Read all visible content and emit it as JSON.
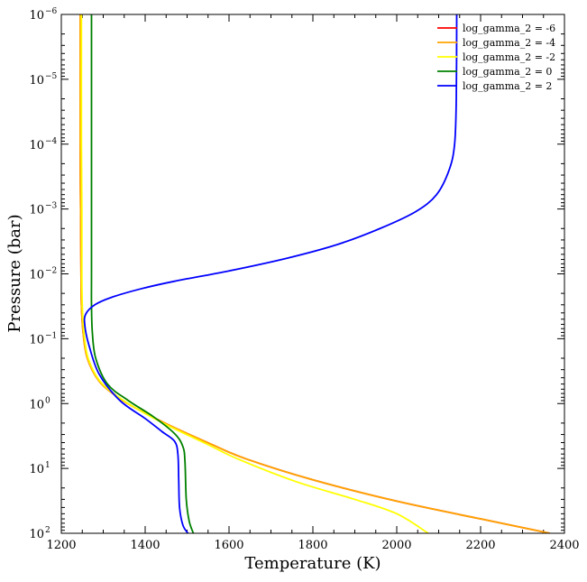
{
  "chart_data": {
    "type": "line",
    "title": "",
    "xlabel": "Temperature (K)",
    "ylabel": "Pressure (bar)",
    "xlim": [
      1200,
      2400
    ],
    "ylim": [
      100,
      1e-06
    ],
    "yscale": "log",
    "y_inverted": true,
    "grid": false,
    "legend_position": "top-right",
    "x_ticks": [
      1200,
      1400,
      1600,
      1800,
      2000,
      2200,
      2400
    ],
    "x_tick_labels": [
      "1200",
      "1400",
      "1600",
      "1800",
      "2000",
      "2200",
      "2400"
    ],
    "y_ticks": [
      {
        "value": 1e-06,
        "base": "10",
        "exp": "−6"
      },
      {
        "value": 1e-05,
        "base": "10",
        "exp": "−5"
      },
      {
        "value": 0.0001,
        "base": "10",
        "exp": "−4"
      },
      {
        "value": 0.001,
        "base": "10",
        "exp": "−3"
      },
      {
        "value": 0.01,
        "base": "10",
        "exp": "−2"
      },
      {
        "value": 0.1,
        "base": "10",
        "exp": "−1"
      },
      {
        "value": 1,
        "base": "10",
        "exp": "0"
      },
      {
        "value": 10,
        "base": "10",
        "exp": "1"
      },
      {
        "value": 100,
        "base": "10",
        "exp": "2"
      }
    ],
    "series": [
      {
        "name": "log_gamma_2 = -6",
        "color": "#ff0000",
        "points": [
          [
            1245,
            1e-06
          ],
          [
            1245,
            0.0001
          ],
          [
            1246,
            0.001
          ],
          [
            1247,
            0.01
          ],
          [
            1248,
            0.03
          ],
          [
            1252,
            0.08
          ],
          [
            1262,
            0.2
          ],
          [
            1290,
            0.45
          ],
          [
            1335,
            0.8
          ],
          [
            1380,
            1.2
          ],
          [
            1460,
            2.2
          ],
          [
            1560,
            4.3
          ],
          [
            1640,
            7.1
          ],
          [
            1800,
            15
          ],
          [
            2000,
            32
          ],
          [
            2200,
            60
          ],
          [
            2365,
            100
          ]
        ]
      },
      {
        "name": "log_gamma_2 = -4",
        "color": "#ffa500",
        "points": [
          [
            1245,
            1e-06
          ],
          [
            1245,
            0.0001
          ],
          [
            1246,
            0.001
          ],
          [
            1247,
            0.01
          ],
          [
            1248,
            0.03
          ],
          [
            1252,
            0.08
          ],
          [
            1262,
            0.2
          ],
          [
            1290,
            0.45
          ],
          [
            1335,
            0.8
          ],
          [
            1380,
            1.2
          ],
          [
            1460,
            2.2
          ],
          [
            1560,
            4.3
          ],
          [
            1640,
            7.1
          ],
          [
            1800,
            15
          ],
          [
            2000,
            32
          ],
          [
            2200,
            60
          ],
          [
            2365,
            100
          ]
        ]
      },
      {
        "name": "log_gamma_2 = -2",
        "color": "#ffff00",
        "points": [
          [
            1248,
            1e-06
          ],
          [
            1248,
            0.0001
          ],
          [
            1249,
            0.001
          ],
          [
            1249,
            0.01
          ],
          [
            1250,
            0.03
          ],
          [
            1254,
            0.08
          ],
          [
            1264,
            0.2
          ],
          [
            1292,
            0.45
          ],
          [
            1337,
            0.8
          ],
          [
            1380,
            1.2
          ],
          [
            1455,
            2.2
          ],
          [
            1550,
            4.3
          ],
          [
            1620,
            7.1
          ],
          [
            1760,
            16
          ],
          [
            1900,
            30
          ],
          [
            2000,
            50
          ],
          [
            2075,
            100
          ]
        ]
      },
      {
        "name": "log_gamma_2 = 0",
        "color": "#008000",
        "points": [
          [
            1272,
            1e-06
          ],
          [
            1272,
            0.0001
          ],
          [
            1272,
            0.001
          ],
          [
            1272,
            0.01
          ],
          [
            1272,
            0.03
          ],
          [
            1274,
            0.08
          ],
          [
            1282,
            0.2
          ],
          [
            1310,
            0.5
          ],
          [
            1360,
            0.9
          ],
          [
            1420,
            1.6
          ],
          [
            1470,
            2.9
          ],
          [
            1490,
            4.6
          ],
          [
            1495,
            8
          ],
          [
            1498,
            30
          ],
          [
            1505,
            65
          ],
          [
            1515,
            100
          ]
        ]
      },
      {
        "name": "log_gamma_2 = 2",
        "color": "#0000ff",
        "points": [
          [
            2143,
            1e-06
          ],
          [
            2142,
            2e-05
          ],
          [
            2138,
            0.0001
          ],
          [
            2125,
            0.00025
          ],
          [
            2095,
            0.0006
          ],
          [
            2045,
            0.0011
          ],
          [
            1960,
            0.002
          ],
          [
            1860,
            0.0035
          ],
          [
            1740,
            0.0057
          ],
          [
            1600,
            0.009
          ],
          [
            1470,
            0.013
          ],
          [
            1390,
            0.017
          ],
          [
            1320,
            0.023
          ],
          [
            1280,
            0.03
          ],
          [
            1258,
            0.042
          ],
          [
            1256,
            0.062
          ],
          [
            1265,
            0.12
          ],
          [
            1290,
            0.35
          ],
          [
            1340,
            0.9
          ],
          [
            1400,
            1.7
          ],
          [
            1440,
            2.7
          ],
          [
            1470,
            3.8
          ],
          [
            1478,
            6
          ],
          [
            1480,
            15
          ],
          [
            1482,
            40
          ],
          [
            1490,
            75
          ],
          [
            1502,
            100
          ]
        ]
      }
    ]
  }
}
